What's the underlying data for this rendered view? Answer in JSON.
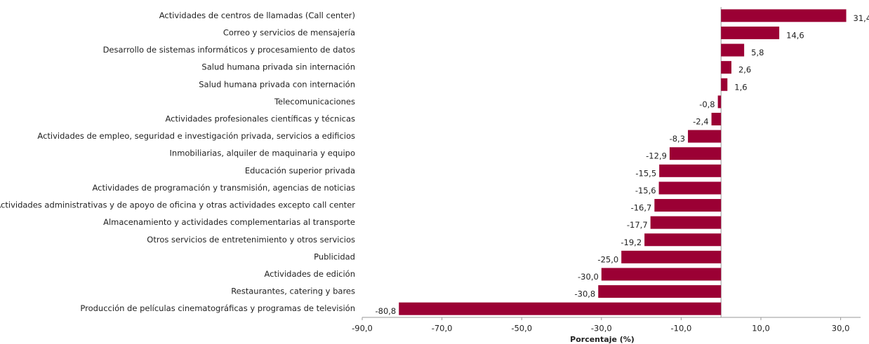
{
  "chart_data": {
    "type": "bar",
    "orientation": "horizontal",
    "categories": [
      "Actividades de centros de llamadas (Call center)",
      "Correo y servicios de mensajería",
      "Desarrollo de sistemas informáticos y procesamiento de datos",
      "Salud humana privada sin internación",
      "Salud humana privada con internación",
      "Telecomunicaciones",
      "Actividades profesionales científicas y técnicas",
      "Actividades de empleo, seguridad e investigación privada, servicios a edificios",
      "Inmobiliarias, alquiler de maquinaria y equipo",
      "Educación superior privada",
      "Actividades de programación y transmisión,  agencias de noticias",
      "Actividades administrativas y de apoyo de oficina y otras actividades excepto call center",
      "Almacenamiento y actividades complementarias al transporte",
      "Otros servicios de entretenimiento y otros servicios",
      "Publicidad",
      "Actividades de edición",
      "Restaurantes, catering y bares",
      "Producción de películas cinematográficas y programas de televisión"
    ],
    "values": [
      31.4,
      14.6,
      5.8,
      2.6,
      1.6,
      -0.8,
      -2.4,
      -8.3,
      -12.9,
      -15.5,
      -15.6,
      -16.7,
      -17.7,
      -19.2,
      -25.0,
      -30.0,
      -30.8,
      -80.8
    ],
    "value_labels": [
      "31,4",
      "14,6",
      "5,8",
      "2,6",
      "1,6",
      "-0,8",
      "-2,4",
      "-8,3",
      "-12,9",
      "-15,5",
      "-15,6",
      "-16,7",
      "-17,7",
      "-19,2",
      "-25,0",
      "-30,0",
      "-30,8",
      "-80,8"
    ],
    "color": "#9b0034",
    "xlabel": "Porcentaje (%)",
    "xlim": [
      -90,
      35
    ],
    "xticks": [
      {
        "value": -90,
        "label": "-90,0"
      },
      {
        "value": -70,
        "label": "-70,0"
      },
      {
        "value": -50,
        "label": "-50,0"
      },
      {
        "value": -30,
        "label": "-30,0"
      },
      {
        "value": -10,
        "label": "-10,0"
      },
      {
        "value": 10,
        "label": "10,0"
      },
      {
        "value": 30,
        "label": "30,0"
      }
    ]
  }
}
